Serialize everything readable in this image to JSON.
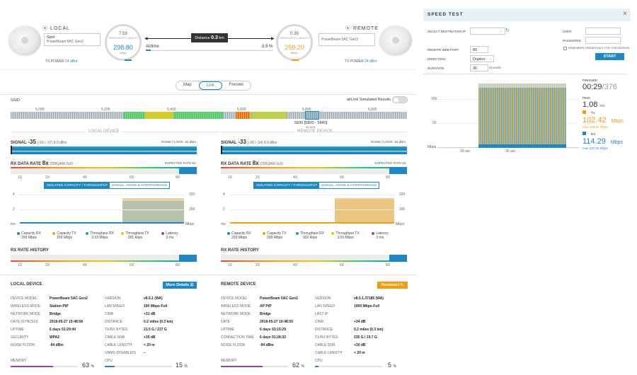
{
  "colors": {
    "accent": "#1e88c7",
    "orange": "#f39c12",
    "panel_header": "#e6f1f8"
  },
  "local": {
    "title": "LOCAL",
    "name": "Spoi",
    "model": "PowerBeam 5AC Gen2",
    "tx_power_label": "TX POWER",
    "tx_power_value": "24 dBm",
    "gauge": {
      "top": "7.59",
      "label": "THROUGHPUT CAPACITY",
      "value": "298.80",
      "unit": "Mbps"
    }
  },
  "remote": {
    "title": "REMOTE",
    "model": "PowerBeam 5AC Gen2",
    "tx_power_label": "TX POWER",
    "tx_power_value": "24 dBm",
    "gauge": {
      "top": "0.38",
      "label": "THROUGHPUT CAPACITY",
      "value": "259.20",
      "unit": "Mbps"
    }
  },
  "link": {
    "distance_label": "Distance",
    "distance_value": "0.3",
    "distance_unit": "km",
    "airtime_label": "Airtime",
    "airtime_value": "3.9 %"
  },
  "view_tabs": [
    "Map",
    "Link",
    "Fresnel"
  ],
  "ssid_label": "SSID",
  "airlink_label": "airLink Simulated Results",
  "freq_ticks": [
    "5,000",
    "5,200",
    "5,400",
    "5,600",
    "5,800",
    "6,000"
  ],
  "freq_selected": "5830 [5800 - 5840]",
  "freq_width": "40 MHz",
  "local_device_label": "LOCAL DEVICE",
  "remote_device_label": "REMOTE DEVICE",
  "panels": [
    {
      "signal_label": "SIGNAL",
      "signal_value": "-35",
      "signal_detail": "(-39 / -37) 8.0 dBm",
      "noise_floor": "NOISE FLOOR -94 dBm",
      "rx_rate_label": "RX DATA RATE",
      "rx_rate_value": "8x",
      "rx_rate_detail": "(256QAM 2x2)",
      "expected_rate": "EXPECTED RATE 8X",
      "rate_ticks": [
        "1X",
        "2X",
        "4X",
        "6X",
        "8X"
      ],
      "tab_a": "ISOLATED CAPACITY / THROUGHPUT",
      "tab_b": "SIGNAL, NOISE & INTERFERENCE",
      "y_left": [
        "4",
        "2",
        "ms"
      ],
      "y_right": [
        "320",
        "160",
        "Mbps"
      ],
      "legend": [
        {
          "name": "Capacity RX",
          "value": "299 Mbps",
          "color": "#1e88c7"
        },
        {
          "name": "Capacity TX",
          "value": "259 Mbps",
          "color": "#f39c12"
        },
        {
          "name": "Throughput RX",
          "value": "3.03 Mbps",
          "color": "#1aa0b8"
        },
        {
          "name": "Throughput TX",
          "value": "301 kbps",
          "color": "#f1c40f"
        },
        {
          "name": "Latency",
          "value": "0 ms",
          "color": "#8e44ad"
        }
      ],
      "history_label": "RX RATE HISTORY"
    },
    {
      "signal_label": "SIGNAL",
      "signal_value": "-33",
      "signal_detail": "(-38 / -34) 8.6 dBm",
      "noise_floor": "NOISE FLOOR -94 dBm",
      "rx_rate_label": "RX DATA RATE",
      "rx_rate_value": "8x",
      "rx_rate_detail": "(256QAM 2x2)",
      "expected_rate": "EXPECTED RATE 8X",
      "rate_ticks": [
        "1X",
        "2X",
        "4X",
        "6X",
        "8X"
      ],
      "tab_a": "ISOLATED CAPACITY / THROUGHPUT",
      "tab_b": "SIGNAL, NOISE & INTERFERENCE",
      "y_left": [
        "4",
        "2",
        "ms"
      ],
      "y_right": [
        "320",
        "160",
        "Mbps"
      ],
      "legend": [
        {
          "name": "Capacity RX",
          "value": "259 Mbps",
          "color": "#1e88c7"
        },
        {
          "name": "Capacity TX",
          "value": "299 Mbps",
          "color": "#f39c12"
        },
        {
          "name": "Throughput RX",
          "value": "302 kbps",
          "color": "#1aa0b8"
        },
        {
          "name": "Throughput TX",
          "value": "3.03 Mbps",
          "color": "#f1c40f"
        },
        {
          "name": "Latency",
          "value": "0 ms",
          "color": "#8e44ad"
        }
      ],
      "history_label": "RX RATE HISTORY"
    }
  ],
  "local_info": {
    "title": "LOCAL DEVICE",
    "button": "More Details",
    "left": [
      [
        "DEVICE MODEL",
        "PowerBeam 5AC Gen2"
      ],
      [
        "WIRELESS MODE",
        "Station PtP"
      ],
      [
        "NETWORK MODE",
        "Bridge"
      ],
      [
        "DATE (SYNCED)",
        "2018-05-27 19:48:58"
      ],
      [
        "UPTIME",
        "6 days 01:29:44"
      ],
      [
        "SECURITY",
        "WPA2"
      ],
      [
        "NOISE FLOOR",
        "-94 dBm"
      ]
    ],
    "right": [
      [
        "VERSION",
        "v8.5.1 (WA)"
      ],
      [
        "LAN SPEED",
        "100 Mbps-Full"
      ],
      [
        "CINR",
        "+31 dB"
      ],
      [
        "DISTANCE",
        "0.2 miles (0.3 km)"
      ],
      [
        "TX/RX BYTES",
        "21.5 G / 227 G"
      ],
      [
        "CABLE SNR",
        "+30 dB"
      ],
      [
        "CABLE LENGTH",
        "< 20 m"
      ],
      [
        "UNMS (DISABLED)",
        "–"
      ]
    ],
    "memory_label": "MEMORY",
    "memory_value": "63",
    "cpu_label": "CPU",
    "cpu_value": "15",
    "pct": "%"
  },
  "remote_info": {
    "title": "REMOTE DEVICE",
    "button": "Reconnect",
    "left": [
      [
        "DEVICE MODEL",
        "PowerBeam 5AC Gen2"
      ],
      [
        "WIRELESS MODE",
        "AP PtP"
      ],
      [
        "NETWORK MODE",
        "Bridge"
      ],
      [
        "DATE",
        "2018-05-27 19:48:55"
      ],
      [
        "UPTIME",
        "6 days 03:15:29"
      ],
      [
        "CONNECTION TIME",
        "6 days 01:28:32"
      ],
      [
        "NOISE FLOOR",
        "-94 dBm"
      ]
    ],
    "right": [
      [
        "VERSION",
        "v8.5.1.37185 (WA)"
      ],
      [
        "LAN SPEED",
        "1000 Mbps-Full"
      ],
      [
        "LAST IP",
        ""
      ],
      [
        "CINR",
        "+34 dB"
      ],
      [
        "DISTANCE",
        "0.2 miles (0.3 km)"
      ],
      [
        "TX/RX BYTES",
        "235 G / 19.7 G"
      ],
      [
        "CABLE SNR",
        "+30 dB"
      ],
      [
        "CABLE LENGTH",
        "< 20 m"
      ]
    ],
    "memory_label": "MEMORY",
    "memory_value": "62",
    "cpu_label": "CPU",
    "cpu_value": "5",
    "pct": "%"
  },
  "speed_test": {
    "title": "SPEED TEST",
    "dest_label": "SELECT DESTINATION IP",
    "user_label": "USER",
    "password_label": "PASSWORD",
    "remember_label": "REMEMBER CREDENTIALS FOR THIS SESSION",
    "port_label": "REMOTE WEB PORT",
    "port_value": "80",
    "direction_label": "DIRECTION",
    "direction_value": "Duplex",
    "duration_label": "DURATION",
    "duration_value": "30",
    "duration_unit": "seconds",
    "start_button": "START",
    "finished_label": "FINISHED",
    "finished_time": "00:29",
    "finished_total": "/376",
    "ping_label": "PING",
    "ping_value": "1.08",
    "ping_unit": "ms",
    "tx_label": "TX",
    "tx_value": "102.42",
    "tx_unit": "Mbps",
    "tx_max": "max 129.91 Mbps",
    "rx_label": "RX",
    "rx_value": "114.29",
    "rx_unit": "Mbps",
    "rx_max": "max 137.82 Mbps",
    "chart_y": [
      "100",
      "50",
      "Mbps"
    ],
    "chart_x": [
      "20 sec",
      "30 sec"
    ]
  }
}
